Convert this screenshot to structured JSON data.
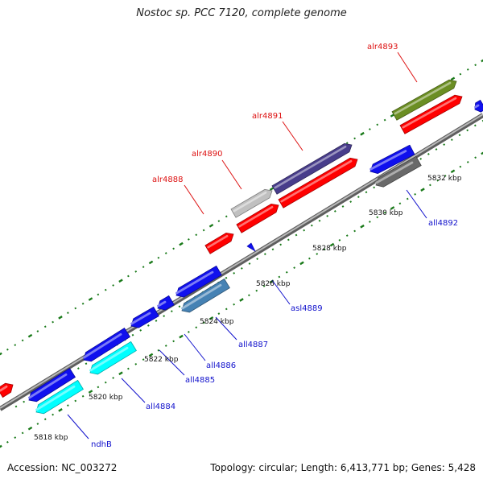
{
  "title": "Nostoc sp. PCC 7120, complete genome",
  "footer": {
    "accession": "Accession: NC_003272",
    "summary": "Topology: circular; Length: 6,413,771 bp; Genes: 5,428"
  },
  "colors": {
    "backbone": "#8c8c8c",
    "forward_label": "#dd1111",
    "reverse_label": "#1111cc",
    "tick": "#1a7a1a"
  },
  "kbp_labels": [
    "5818 kbp",
    "5820 kbp",
    "5822 kbp",
    "5824 kbp",
    "5826 kbp",
    "5828 kbp",
    "5830 kbp",
    "5832 kbp"
  ],
  "genes": [
    {
      "name": "ndhB",
      "strand": "reverse",
      "color": "#00ffff"
    },
    {
      "name": "all4884",
      "strand": "reverse",
      "color": "#00ffff"
    },
    {
      "name": "all4885",
      "strand": "reverse",
      "color": "#1010ee"
    },
    {
      "name": "all4886",
      "strand": "reverse",
      "color": "#1010ee"
    },
    {
      "name": "all4887",
      "strand": "reverse",
      "color": "#4682b4"
    },
    {
      "name": "asl4889",
      "strand": "reverse",
      "color": "#1010ee"
    },
    {
      "name": "alr4888",
      "strand": "forward",
      "color": "#ff0000"
    },
    {
      "name": "alr4890",
      "strand": "forward",
      "color": "#ff0000"
    },
    {
      "name": "alr4891",
      "strand": "forward",
      "color": "#ff0000"
    },
    {
      "name": "all4892",
      "strand": "reverse",
      "color": "#1010ee"
    },
    {
      "name": "alr4893",
      "strand": "forward",
      "color": "#ff0000"
    }
  ],
  "tracks": [
    {
      "name": "unlabeled-gene",
      "color": "#1010ee"
    },
    {
      "name": "unlabeled-gene",
      "color": "#1010ee"
    },
    {
      "name": "unlabeled-gene",
      "color": "#1010ee"
    },
    {
      "name": "unlabeled-gene",
      "color": "#1010ee"
    },
    {
      "name": "unlabeled-gene",
      "color": "#ff0000"
    },
    {
      "name": "unlabeled-gene",
      "color": "#c0c0c0"
    },
    {
      "name": "unlabeled-gene",
      "color": "#483d8b"
    },
    {
      "name": "unlabeled-gene",
      "color": "#1010ee"
    },
    {
      "name": "unlabeled-gene",
      "color": "#696969"
    },
    {
      "name": "unlabeled-gene",
      "color": "#6b8e23"
    },
    {
      "name": "unlabeled-gene",
      "color": "#ff0000"
    },
    {
      "name": "unlabeled-gene",
      "color": "#1010ee"
    }
  ]
}
